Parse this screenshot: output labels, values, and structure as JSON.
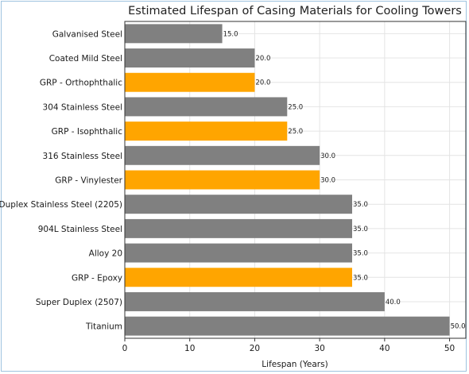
{
  "chart_data": {
    "type": "bar",
    "orientation": "horizontal",
    "title": "Estimated Lifespan of Casing Materials for Cooling Towers",
    "xlabel": "Lifespan (Years)",
    "ylabel": "",
    "xlim": [
      0,
      52.5
    ],
    "xticks": [
      0,
      10,
      20,
      30,
      40,
      50
    ],
    "grid": true,
    "categories": [
      "Galvanised Steel",
      "Coated Mild Steel",
      "GRP - Orthophthalic",
      "304 Stainless Steel",
      "GRP - Isophthalic",
      "316 Stainless Steel",
      "GRP - Vinylester",
      "Duplex Stainless Steel (2205)",
      "904L Stainless Steel",
      "Alloy 20",
      "GRP - Epoxy",
      "Super Duplex (2507)",
      "Titanium"
    ],
    "values": [
      15,
      20,
      20,
      25,
      25,
      30,
      30,
      35,
      35,
      35,
      35,
      40,
      50
    ],
    "value_labels": [
      "15.0",
      "20.0",
      "20.0",
      "25.0",
      "25.0",
      "30.0",
      "30.0",
      "35.0",
      "35.0",
      "35.0",
      "35.0",
      "40.0",
      "50.0"
    ],
    "is_grp": [
      false,
      false,
      true,
      false,
      true,
      false,
      true,
      false,
      false,
      false,
      true,
      false,
      false
    ],
    "colors": {
      "grp": "#ffa500",
      "other": "#808080"
    }
  }
}
